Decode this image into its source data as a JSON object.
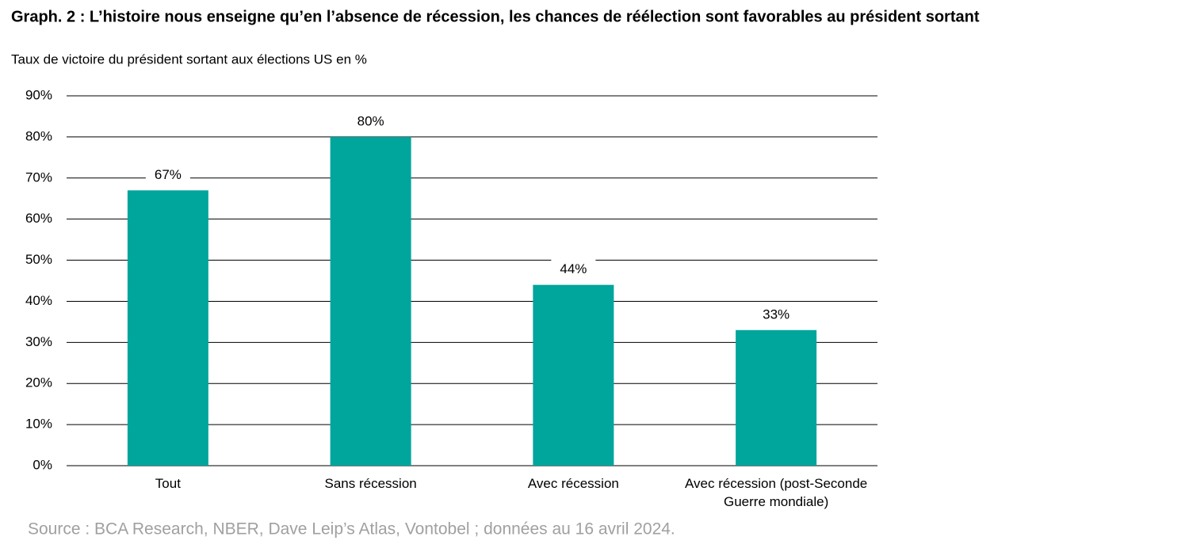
{
  "chart_data": {
    "type": "bar",
    "title": "Graph. 2 : L’histoire nous enseigne qu’en l’absence de récession, les chances de réélection sont favorables au président sortant",
    "subtitle": "Taux de victoire du président sortant aux élections US en %",
    "source": "Source : BCA Research, NBER, Dave Leip’s Atlas, Vontobel ; données au 16 avril 2024.",
    "categories": [
      "Tout",
      "Sans récession",
      "Avec récession",
      "Avec récession (post-Seconde Guerre mondiale)"
    ],
    "values": [
      67,
      80,
      44,
      33
    ],
    "value_labels": [
      "67%",
      "80%",
      "44%",
      "33%"
    ],
    "color": "#00a59b",
    "ylim": [
      0,
      90
    ],
    "yticks": [
      {
        "value": 0,
        "label": "0%"
      },
      {
        "value": 10,
        "label": "10%"
      },
      {
        "value": 20,
        "label": "20%"
      },
      {
        "value": 30,
        "label": "30%"
      },
      {
        "value": 40,
        "label": "40%"
      },
      {
        "value": 50,
        "label": "50%"
      },
      {
        "value": 60,
        "label": "60%"
      },
      {
        "value": 70,
        "label": "70%"
      },
      {
        "value": 80,
        "label": "80%"
      },
      {
        "value": 90,
        "label": "90%"
      }
    ],
    "grid": true
  }
}
